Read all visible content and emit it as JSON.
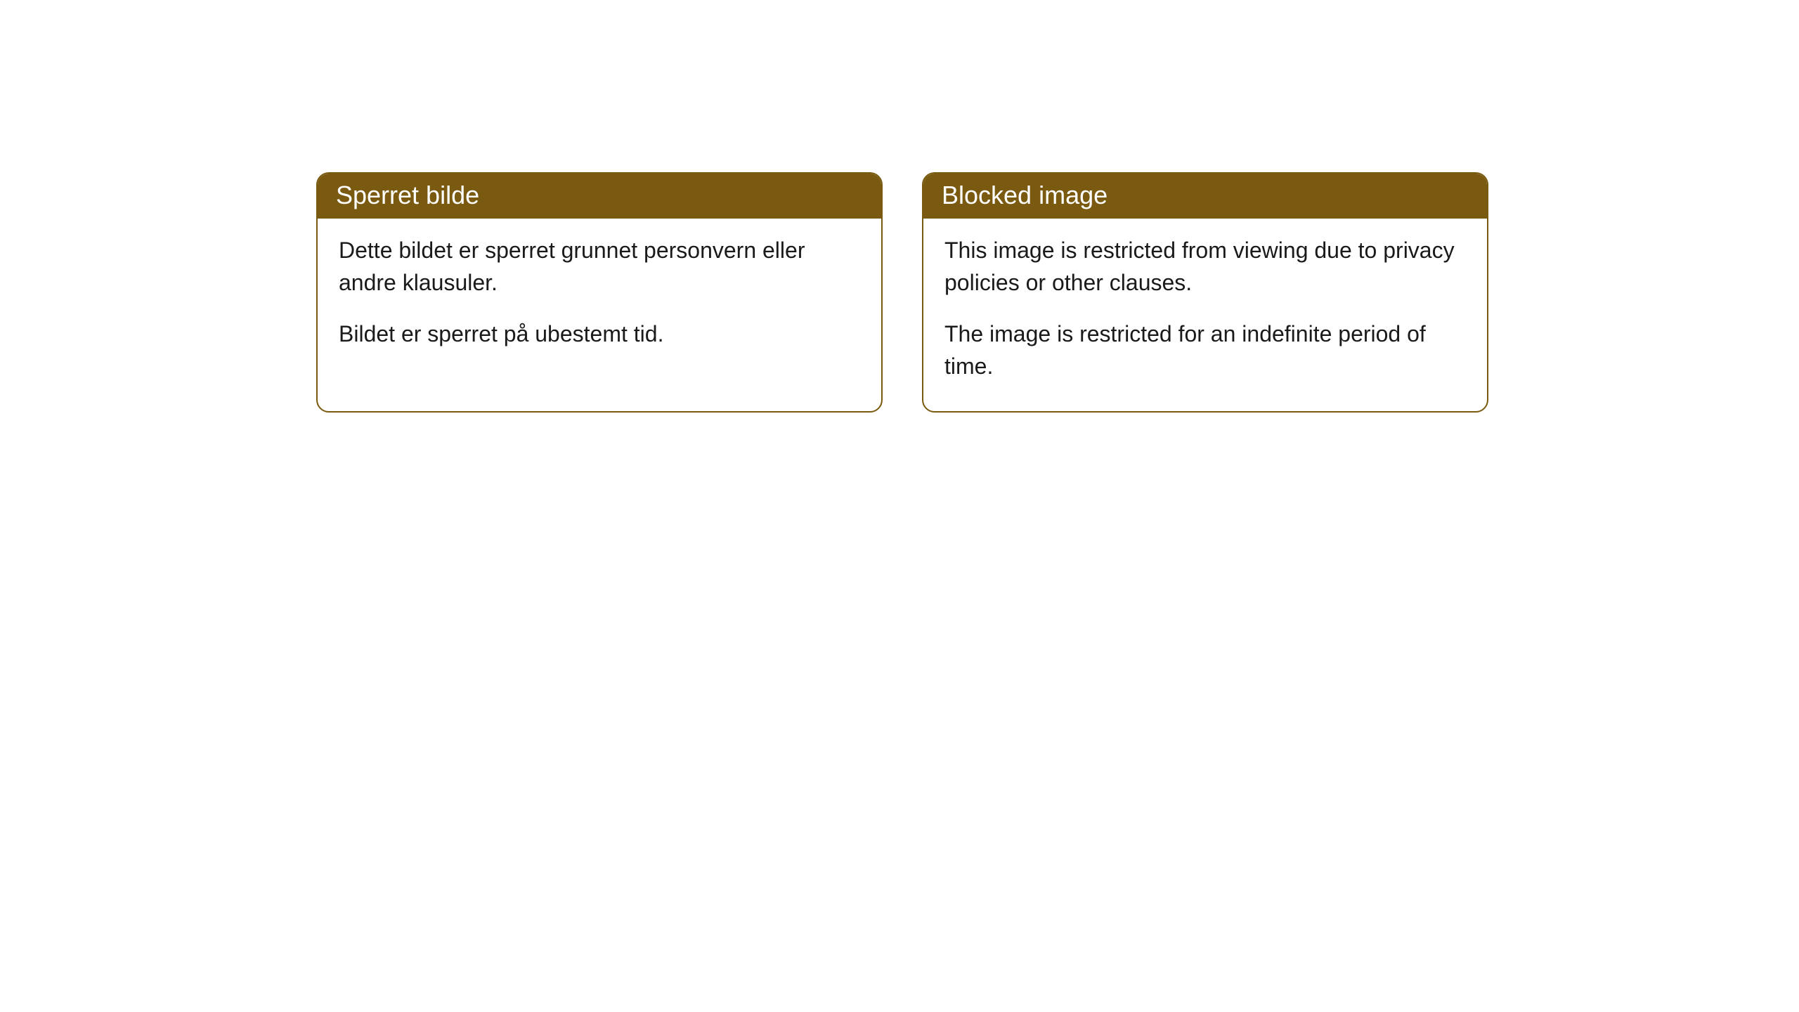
{
  "notices": {
    "left": {
      "header": "Sperret bilde",
      "para1": "Dette bildet er sperret grunnet personvern eller andre klausuler.",
      "para2": "Bildet er sperret på ubestemt tid."
    },
    "right": {
      "header": "Blocked image",
      "para1": "This image is restricted from viewing due to privacy policies or other clauses.",
      "para2": "The image is restricted for an indefinite period of time."
    }
  },
  "colors": {
    "header_bg": "#7a5a10",
    "header_text": "#ffffff",
    "border": "#7a5a10",
    "body_bg": "#ffffff",
    "body_text": "#1a1a1a"
  }
}
